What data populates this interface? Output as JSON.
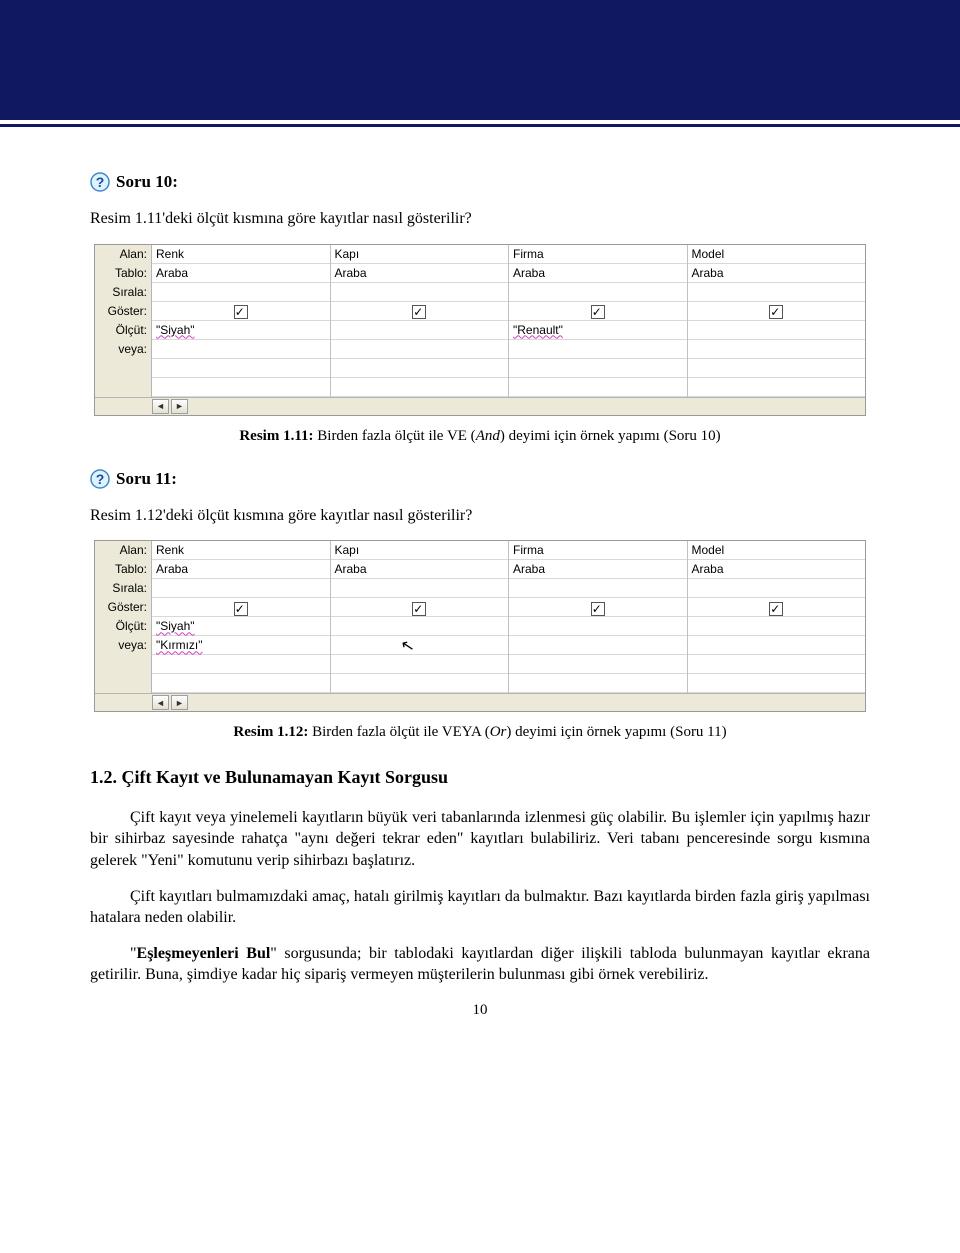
{
  "header": {
    "band_color": "#0f1861"
  },
  "q1": {
    "soru": "Soru 10:",
    "text": "Resim 1.11'deki ölçüt kısmına göre kayıtlar nasıl gösterilir?",
    "caption_b": "Resim 1.11:",
    "caption_rest_1": " Birden fazla ölçüt ile VE (",
    "caption_it": "And",
    "caption_rest_2": ") deyimi için örnek yapımı (Soru 10)"
  },
  "q2": {
    "soru": "Soru 11:",
    "text": "Resim 1.12'deki ölçüt kısmına göre kayıtlar nasıl gösterilir?",
    "caption_b": "Resim 1.12:",
    "caption_rest_1": " Birden fazla ölçüt ile VEYA (",
    "caption_it": "Or",
    "caption_rest_2": ") deyimi için örnek yapımı (Soru 11)"
  },
  "grid": {
    "row_labels": [
      "Alan:",
      "Tablo:",
      "Sırala:",
      "Göster:",
      "Ölçüt:",
      "veya:"
    ],
    "columns": [
      {
        "alan": "Renk",
        "tablo": "Araba",
        "olcut": "\"Siyah\"",
        "veya": ""
      },
      {
        "alan": "Kapı",
        "tablo": "Araba",
        "olcut": "",
        "veya": ""
      },
      {
        "alan": "Firma",
        "tablo": "Araba",
        "olcut": "\"Renault\"",
        "veya": ""
      },
      {
        "alan": "Model",
        "tablo": "Araba",
        "olcut": "",
        "veya": ""
      }
    ]
  },
  "grid2": {
    "columns": [
      {
        "alan": "Renk",
        "tablo": "Araba",
        "olcut": "\"Siyah\"",
        "veya": "\"Kırmızı\""
      },
      {
        "alan": "Kapı",
        "tablo": "Araba",
        "olcut": "",
        "veya": ""
      },
      {
        "alan": "Firma",
        "tablo": "Araba",
        "olcut": "",
        "veya": ""
      },
      {
        "alan": "Model",
        "tablo": "Araba",
        "olcut": "",
        "veya": ""
      }
    ]
  },
  "section": {
    "title": "1.2. Çift Kayıt ve Bulunamayan Kayıt Sorgusu",
    "p1": "Çift kayıt veya yinelemeli kayıtların büyük veri tabanlarında izlenmesi güç olabilir. Bu işlemler için yapılmış hazır bir sihirbaz sayesinde rahatça \"aynı değeri tekrar eden\" kayıtları bulabiliriz. Veri tabanı penceresinde sorgu kısmına gelerek \"Yeni\" komutunu verip sihirbazı başlatırız.",
    "p2": "Çift kayıtları bulmamızdaki amaç, hatalı girilmiş kayıtları da bulmaktır. Bazı kayıtlarda birden fazla giriş yapılması hatalara neden olabilir.",
    "p3a": "\"",
    "p3b": "Eşleşmeyenleri Bul",
    "p3c": "\" sorgusunda; bir tablodaki kayıtlardan diğer ilişkili tabloda bulunmayan kayıtlar ekrana getirilir. Buna, şimdiye kadar hiç sipariş vermeyen müşterilerin bulunması gibi örnek verebiliriz."
  },
  "page": "10"
}
